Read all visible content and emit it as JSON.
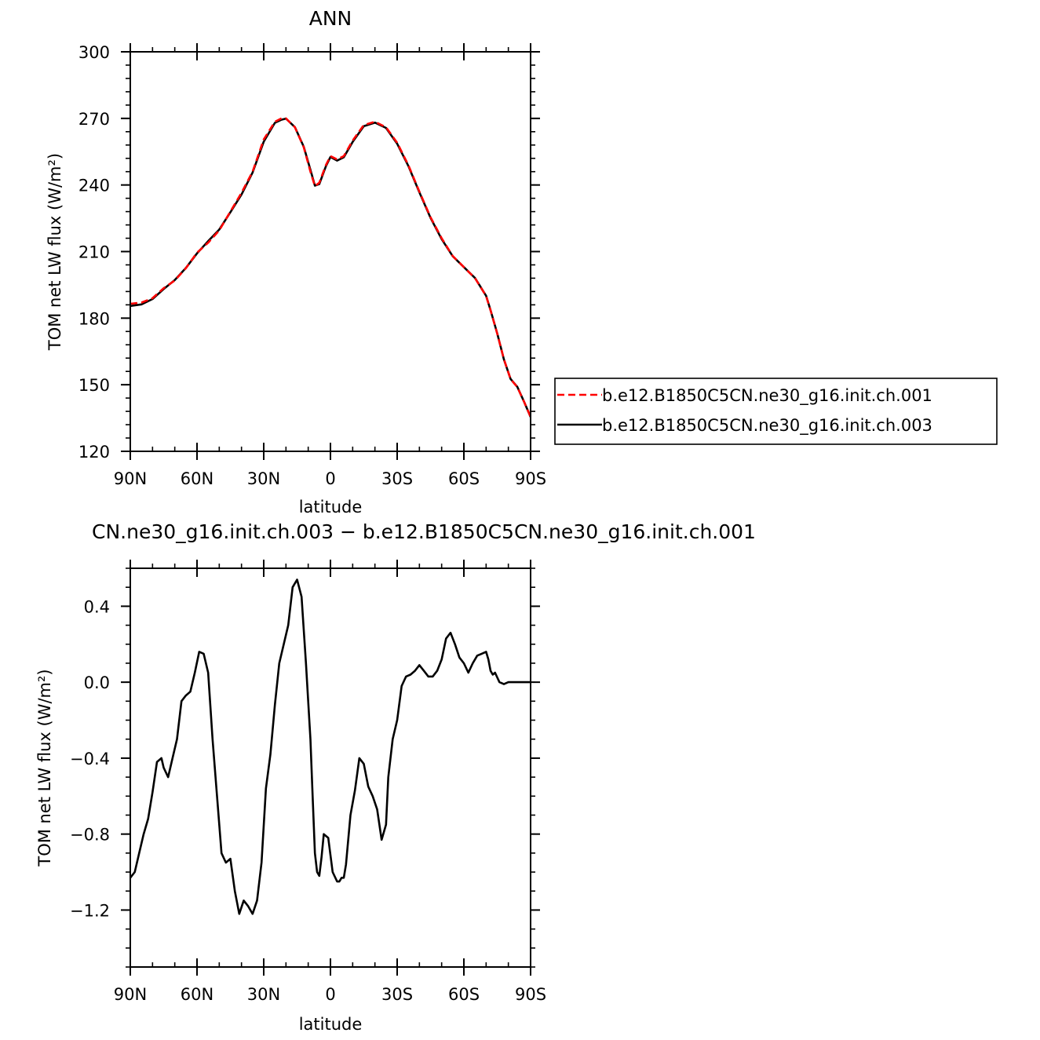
{
  "chart_data": [
    {
      "type": "line",
      "title": "ANN",
      "xlabel": "latitude",
      "ylabel": "TOM net LW flux (W/m²)",
      "xlim": [
        90,
        -90
      ],
      "ylim": [
        120,
        300
      ],
      "x_ticks": [
        90,
        60,
        30,
        0,
        -30,
        -60,
        -90
      ],
      "x_tick_labels": [
        "90N",
        "60N",
        "30N",
        "0",
        "30S",
        "60S",
        "90S"
      ],
      "y_ticks": [
        120,
        150,
        180,
        210,
        240,
        270,
        300
      ],
      "y_tick_labels": [
        "120",
        "150",
        "180",
        "210",
        "240",
        "270",
        "300"
      ],
      "legend_position": "right",
      "grid": false,
      "series": [
        {
          "name": "b.e12.B1850C5CN.ne30_g16.init.ch.001",
          "color": "#ff0000",
          "dash": true,
          "x": [
            90,
            85,
            80,
            75,
            70,
            65,
            60,
            55,
            50,
            45,
            40,
            35,
            30,
            25,
            22,
            20,
            16,
            12,
            9,
            7,
            5,
            2,
            0,
            -3,
            -6,
            -10,
            -15,
            -20,
            -25,
            -30,
            -35,
            -40,
            -45,
            -50,
            -55,
            -60,
            -65,
            -70,
            -72,
            -75,
            -78,
            -81,
            -84,
            -87,
            -90
          ],
          "y": [
            186.5,
            187,
            189,
            193.5,
            197,
            202.5,
            209.5,
            214,
            219.5,
            228,
            236.5,
            246,
            260.5,
            268.5,
            270,
            270,
            266,
            257,
            246,
            239.5,
            241,
            249,
            253,
            251.5,
            253,
            260,
            267,
            268.5,
            266,
            259,
            249,
            237,
            225.5,
            216,
            208,
            203,
            198,
            190,
            183.5,
            173,
            161.5,
            152.5,
            149,
            142.5,
            135.5
          ]
        },
        {
          "name": "b.e12.B1850C5CN.ne30_g16.init.ch.003",
          "color": "#000000",
          "dash": false,
          "x": [
            90,
            85,
            80,
            75,
            70,
            65,
            60,
            55,
            50,
            45,
            40,
            35,
            30,
            25,
            22,
            20,
            16,
            12,
            9,
            7,
            5,
            2,
            0,
            -3,
            -6,
            -10,
            -15,
            -20,
            -25,
            -30,
            -35,
            -40,
            -45,
            -50,
            -55,
            -60,
            -65,
            -70,
            -72,
            -75,
            -78,
            -81,
            -84,
            -87,
            -90
          ],
          "y": [
            185.5,
            186.2,
            188.6,
            193.1,
            197.2,
            202.6,
            209.2,
            214.7,
            219.9,
            227.7,
            235.7,
            245.6,
            259.5,
            268,
            269.4,
            269.9,
            266.1,
            257.2,
            246.8,
            239.7,
            240.4,
            248.5,
            252.6,
            251,
            252.5,
            259.4,
            266.5,
            268.1,
            265.7,
            258.6,
            248.6,
            236.7,
            225.2,
            215.6,
            207.9,
            203,
            198.1,
            190.1,
            183.6,
            173.1,
            161.4,
            152.6,
            149.1,
            142.5,
            135.5
          ]
        }
      ]
    },
    {
      "type": "line",
      "title": "CN.ne30_g16.init.ch.003 − b.e12.B1850C5CN.ne30_g16.init.ch.001",
      "xlabel": "latitude",
      "ylabel": "TOM net LW flux (W/m²)",
      "xlim": [
        90,
        -90
      ],
      "ylim": [
        -1.5,
        0.6
      ],
      "x_ticks": [
        90,
        60,
        30,
        0,
        -30,
        -60,
        -90
      ],
      "x_tick_labels": [
        "90N",
        "60N",
        "30N",
        "0",
        "30S",
        "60S",
        "90S"
      ],
      "y_ticks": [
        -1.2,
        -0.8,
        -0.4,
        0.0,
        0.4
      ],
      "y_tick_labels": [
        "−1.2",
        "−0.8",
        "−0.4",
        "0.0",
        "0.4"
      ],
      "grid": false,
      "series": [
        {
          "color": "#000000",
          "dash": false,
          "x": [
            90,
            88,
            86,
            84,
            82,
            80,
            78,
            76,
            75,
            73,
            71,
            69,
            67,
            65,
            63,
            61,
            59,
            57,
            55,
            53,
            51,
            49,
            47,
            45,
            43,
            41,
            39,
            37,
            35,
            33,
            31,
            29,
            27,
            25,
            23,
            21,
            19,
            17,
            15,
            13,
            11,
            9,
            8,
            7,
            6,
            5,
            4,
            3,
            1,
            -1,
            -3,
            -4,
            -5,
            -6,
            -7,
            -9,
            -11,
            -13,
            -15,
            -17,
            -19,
            -21,
            -23,
            -25,
            -26,
            -28,
            -30,
            -32,
            -34,
            -36,
            -38,
            -40,
            -42,
            -44,
            -46,
            -48,
            -50,
            -52,
            -54,
            -56,
            -58,
            -60,
            -62,
            -64,
            -66,
            -68,
            -70,
            -71,
            -72,
            -73,
            -74,
            -76,
            -78,
            -80,
            -82,
            -84,
            -86,
            -88,
            -90
          ],
          "y": [
            -1.03,
            -1.0,
            -0.9,
            -0.8,
            -0.72,
            -0.58,
            -0.42,
            -0.4,
            -0.45,
            -0.5,
            -0.4,
            -0.3,
            -0.1,
            -0.07,
            -0.05,
            0.05,
            0.16,
            0.15,
            0.05,
            -0.3,
            -0.6,
            -0.9,
            -0.95,
            -0.93,
            -1.1,
            -1.22,
            -1.15,
            -1.18,
            -1.22,
            -1.15,
            -0.95,
            -0.56,
            -0.38,
            -0.12,
            0.1,
            0.2,
            0.3,
            0.5,
            0.54,
            0.45,
            0.1,
            -0.3,
            -0.6,
            -0.9,
            -1.0,
            -1.02,
            -0.92,
            -0.8,
            -0.82,
            -1.0,
            -1.05,
            -1.05,
            -1.03,
            -1.03,
            -0.96,
            -0.7,
            -0.57,
            -0.4,
            -0.43,
            -0.55,
            -0.6,
            -0.67,
            -0.83,
            -0.75,
            -0.5,
            -0.3,
            -0.2,
            -0.02,
            0.03,
            0.04,
            0.06,
            0.09,
            0.06,
            0.03,
            0.03,
            0.06,
            0.12,
            0.23,
            0.26,
            0.2,
            0.13,
            0.1,
            0.05,
            0.1,
            0.14,
            0.15,
            0.16,
            0.12,
            0.06,
            0.04,
            0.05,
            0.0,
            -0.01,
            0.0,
            0.0,
            0.0,
            0.0,
            0.0,
            0.0
          ]
        }
      ]
    }
  ]
}
